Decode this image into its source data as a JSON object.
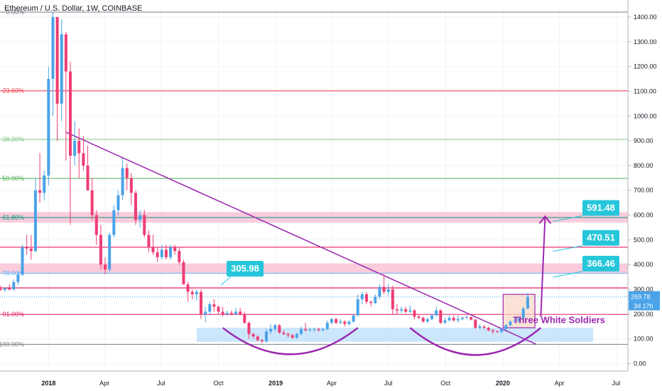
{
  "chart_data": {
    "type": "candlestick",
    "title": "Ethereum / U.S. Dollar, 1W, COINBASE",
    "price_axis": {
      "ticks": [
        1400,
        1300,
        1200,
        1100,
        1000,
        900,
        800,
        700,
        600,
        500,
        400,
        300,
        200,
        100,
        0
      ],
      "tick_labels": [
        "1400.00",
        "1300.00",
        "1200.00",
        "1100.00",
        "1000.00",
        "900.00",
        "800.00",
        "700.00",
        "600.00",
        "500.00",
        "400.00",
        "300.00",
        "200.00",
        "100.00",
        "0.00"
      ],
      "range": [
        -30,
        1440
      ]
    },
    "time_axis": {
      "labels": [
        "2018",
        "Apr",
        "Jul",
        "Oct",
        "2019",
        "Apr",
        "Jul",
        "Oct",
        "2020",
        "Apr",
        "Jul"
      ],
      "label_dates": [
        "2018-01-01",
        "2018-04-01",
        "2018-07-01",
        "2018-10-01",
        "2019-01-01",
        "2019-04-01",
        "2019-07-01",
        "2019-10-01",
        "2020-01-01",
        "2020-04-01",
        "2020-07-01"
      ],
      "bold_labels": [
        "2018",
        "2019",
        "2020"
      ],
      "range": [
        "2017-10-15",
        "2020-07-20"
      ]
    },
    "fib_levels": [
      {
        "label": "0.00%",
        "price": 1420,
        "color": "#787b86"
      },
      {
        "label": "23.60%",
        "price": 1102,
        "color": "#f23645"
      },
      {
        "label": "38.20%",
        "price": 906,
        "color": "#81c784"
      },
      {
        "label": "50.00%",
        "price": 748,
        "color": "#4caf50"
      },
      {
        "label": "61.80%",
        "price": 590,
        "color": "#089981"
      },
      {
        "label": "78.60%",
        "price": 365,
        "color": "#64b5f6"
      },
      {
        "label": "91.00%",
        "price": 199,
        "color": "#e91e63"
      },
      {
        "label": "100.00%",
        "price": 78,
        "color": "#787b86"
      }
    ],
    "horizontal_lines": [
      {
        "price": 470.51,
        "color": "#e91e63"
      },
      {
        "price": 305.98,
        "color": "#e91e63"
      }
    ],
    "zones": [
      {
        "from": 570,
        "to": 612,
        "color": "#f8bbd0"
      },
      {
        "from": 365,
        "to": 405,
        "color": "#f8bbd0"
      },
      {
        "from": 88,
        "to": 145,
        "color": "#bbdefb",
        "start": "2018-08-27",
        "end": "2020-05-25"
      }
    ],
    "trendline": {
      "from": [
        "2018-01-29",
        935
      ],
      "to": [
        "2020-02-24",
        78
      ],
      "color": "#9c27b0"
    },
    "price_labels": [
      {
        "text": "591.48",
        "price": 591.48,
        "anchor_date": "2020-03-10"
      },
      {
        "text": "470.51",
        "price": 470.51,
        "anchor_date": "2020-03-10"
      },
      {
        "text": "366.46",
        "price": 366.46,
        "anchor_date": "2020-03-10"
      },
      {
        "text": "305.98",
        "price": 305.98,
        "anchor_date": "2018-10-05"
      }
    ],
    "pattern_label": {
      "text": "Three White Soldiers",
      "color": "#9c27b0"
    },
    "pattern_box": {
      "start": "2020-01-06",
      "end": "2020-02-17",
      "low": 145,
      "high": 280
    },
    "arcs": [
      {
        "start": "2018-10-08",
        "end": "2019-05-13",
        "top": 145,
        "bottom": 38
      },
      {
        "start": "2019-08-05",
        "end": "2020-03-02",
        "top": 145,
        "bottom": 35
      }
    ],
    "target_arrow": {
      "from": [
        "2020-03-02",
        190
      ],
      "to": [
        "2020-03-09",
        595
      ]
    },
    "current_price": {
      "value": "269.78",
      "countdown": "3d 17h",
      "price": 269.78
    },
    "series": [
      {
        "date": "2017-10-09",
        "o": 300,
        "h": 310,
        "l": 290,
        "c": 302
      },
      {
        "date": "2017-10-16",
        "o": 302,
        "h": 315,
        "l": 293,
        "c": 298
      },
      {
        "date": "2017-10-23",
        "o": 298,
        "h": 310,
        "l": 290,
        "c": 305
      },
      {
        "date": "2017-10-30",
        "o": 305,
        "h": 320,
        "l": 295,
        "c": 300
      },
      {
        "date": "2017-11-06",
        "o": 300,
        "h": 340,
        "l": 295,
        "c": 330
      },
      {
        "date": "2017-11-13",
        "o": 330,
        "h": 370,
        "l": 318,
        "c": 360
      },
      {
        "date": "2017-11-20",
        "o": 360,
        "h": 480,
        "l": 355,
        "c": 470
      },
      {
        "date": "2017-11-27",
        "o": 470,
        "h": 520,
        "l": 440,
        "c": 465
      },
      {
        "date": "2017-12-04",
        "o": 465,
        "h": 520,
        "l": 420,
        "c": 455
      },
      {
        "date": "2017-12-11",
        "o": 455,
        "h": 750,
        "l": 450,
        "c": 700
      },
      {
        "date": "2017-12-18",
        "o": 700,
        "h": 850,
        "l": 650,
        "c": 690
      },
      {
        "date": "2017-12-25",
        "o": 690,
        "h": 780,
        "l": 660,
        "c": 760
      },
      {
        "date": "2018-01-01",
        "o": 760,
        "h": 1200,
        "l": 720,
        "c": 1150
      },
      {
        "date": "2018-01-08",
        "o": 1150,
        "h": 1420,
        "l": 1000,
        "c": 1400
      },
      {
        "date": "2018-01-15",
        "o": 1400,
        "h": 1400,
        "l": 900,
        "c": 1050
      },
      {
        "date": "2018-01-22",
        "o": 1050,
        "h": 1390,
        "l": 980,
        "c": 1330
      },
      {
        "date": "2018-01-29",
        "o": 1330,
        "h": 1340,
        "l": 820,
        "c": 1180
      },
      {
        "date": "2018-02-05",
        "o": 1180,
        "h": 1220,
        "l": 560,
        "c": 840
      },
      {
        "date": "2018-02-12",
        "o": 840,
        "h": 980,
        "l": 800,
        "c": 900
      },
      {
        "date": "2018-02-19",
        "o": 900,
        "h": 950,
        "l": 750,
        "c": 850
      },
      {
        "date": "2018-02-26",
        "o": 850,
        "h": 920,
        "l": 780,
        "c": 800
      },
      {
        "date": "2018-03-05",
        "o": 800,
        "h": 880,
        "l": 700,
        "c": 700
      },
      {
        "date": "2018-03-12",
        "o": 700,
        "h": 750,
        "l": 580,
        "c": 600
      },
      {
        "date": "2018-03-19",
        "o": 600,
        "h": 620,
        "l": 480,
        "c": 520
      },
      {
        "date": "2018-03-26",
        "o": 520,
        "h": 560,
        "l": 380,
        "c": 400
      },
      {
        "date": "2018-04-02",
        "o": 400,
        "h": 430,
        "l": 360,
        "c": 380
      },
      {
        "date": "2018-04-09",
        "o": 380,
        "h": 530,
        "l": 370,
        "c": 520
      },
      {
        "date": "2018-04-16",
        "o": 520,
        "h": 640,
        "l": 510,
        "c": 620
      },
      {
        "date": "2018-04-23",
        "o": 620,
        "h": 700,
        "l": 600,
        "c": 680
      },
      {
        "date": "2018-04-30",
        "o": 680,
        "h": 830,
        "l": 660,
        "c": 790
      },
      {
        "date": "2018-05-07",
        "o": 790,
        "h": 810,
        "l": 700,
        "c": 750
      },
      {
        "date": "2018-05-14",
        "o": 750,
        "h": 770,
        "l": 640,
        "c": 690
      },
      {
        "date": "2018-05-21",
        "o": 690,
        "h": 700,
        "l": 560,
        "c": 580
      },
      {
        "date": "2018-05-28",
        "o": 580,
        "h": 620,
        "l": 550,
        "c": 600
      },
      {
        "date": "2018-06-04",
        "o": 600,
        "h": 620,
        "l": 510,
        "c": 520
      },
      {
        "date": "2018-06-11",
        "o": 520,
        "h": 540,
        "l": 450,
        "c": 470
      },
      {
        "date": "2018-06-18",
        "o": 470,
        "h": 520,
        "l": 440,
        "c": 450
      },
      {
        "date": "2018-06-25",
        "o": 450,
        "h": 470,
        "l": 410,
        "c": 430
      },
      {
        "date": "2018-07-02",
        "o": 430,
        "h": 480,
        "l": 420,
        "c": 460
      },
      {
        "date": "2018-07-09",
        "o": 460,
        "h": 480,
        "l": 420,
        "c": 430
      },
      {
        "date": "2018-07-16",
        "o": 430,
        "h": 480,
        "l": 420,
        "c": 470
      },
      {
        "date": "2018-07-23",
        "o": 470,
        "h": 480,
        "l": 440,
        "c": 455
      },
      {
        "date": "2018-07-30",
        "o": 455,
        "h": 470,
        "l": 400,
        "c": 410
      },
      {
        "date": "2018-08-06",
        "o": 410,
        "h": 420,
        "l": 320,
        "c": 320
      },
      {
        "date": "2018-08-13",
        "o": 320,
        "h": 330,
        "l": 250,
        "c": 290
      },
      {
        "date": "2018-08-20",
        "o": 290,
        "h": 300,
        "l": 260,
        "c": 280
      },
      {
        "date": "2018-08-27",
        "o": 280,
        "h": 300,
        "l": 255,
        "c": 290
      },
      {
        "date": "2018-09-03",
        "o": 290,
        "h": 300,
        "l": 180,
        "c": 200
      },
      {
        "date": "2018-09-10",
        "o": 200,
        "h": 230,
        "l": 167,
        "c": 210
      },
      {
        "date": "2018-09-17",
        "o": 210,
        "h": 250,
        "l": 200,
        "c": 240
      },
      {
        "date": "2018-09-24",
        "o": 240,
        "h": 260,
        "l": 210,
        "c": 230
      },
      {
        "date": "2018-10-01",
        "o": 230,
        "h": 235,
        "l": 200,
        "c": 210
      },
      {
        "date": "2018-10-08",
        "o": 210,
        "h": 230,
        "l": 190,
        "c": 200
      },
      {
        "date": "2018-10-15",
        "o": 200,
        "h": 215,
        "l": 195,
        "c": 205
      },
      {
        "date": "2018-10-22",
        "o": 205,
        "h": 215,
        "l": 195,
        "c": 200
      },
      {
        "date": "2018-10-29",
        "o": 200,
        "h": 225,
        "l": 195,
        "c": 210
      },
      {
        "date": "2018-11-05",
        "o": 210,
        "h": 225,
        "l": 195,
        "c": 200
      },
      {
        "date": "2018-11-12",
        "o": 200,
        "h": 210,
        "l": 160,
        "c": 165
      },
      {
        "date": "2018-11-19",
        "o": 165,
        "h": 170,
        "l": 100,
        "c": 120
      },
      {
        "date": "2018-11-26",
        "o": 120,
        "h": 125,
        "l": 100,
        "c": 110
      },
      {
        "date": "2018-12-03",
        "o": 110,
        "h": 115,
        "l": 90,
        "c": 95
      },
      {
        "date": "2018-12-10",
        "o": 95,
        "h": 100,
        "l": 83,
        "c": 90
      },
      {
        "date": "2018-12-17",
        "o": 90,
        "h": 140,
        "l": 85,
        "c": 130
      },
      {
        "date": "2018-12-24",
        "o": 130,
        "h": 160,
        "l": 120,
        "c": 140
      },
      {
        "date": "2018-12-31",
        "o": 140,
        "h": 160,
        "l": 130,
        "c": 155
      },
      {
        "date": "2019-01-07",
        "o": 155,
        "h": 160,
        "l": 120,
        "c": 125
      },
      {
        "date": "2019-01-14",
        "o": 125,
        "h": 135,
        "l": 115,
        "c": 120
      },
      {
        "date": "2019-01-21",
        "o": 120,
        "h": 125,
        "l": 105,
        "c": 115
      },
      {
        "date": "2019-01-28",
        "o": 115,
        "h": 120,
        "l": 100,
        "c": 105
      },
      {
        "date": "2019-02-04",
        "o": 105,
        "h": 125,
        "l": 100,
        "c": 120
      },
      {
        "date": "2019-02-11",
        "o": 120,
        "h": 150,
        "l": 115,
        "c": 140
      },
      {
        "date": "2019-02-18",
        "o": 140,
        "h": 165,
        "l": 130,
        "c": 135
      },
      {
        "date": "2019-02-25",
        "o": 135,
        "h": 145,
        "l": 130,
        "c": 138
      },
      {
        "date": "2019-03-04",
        "o": 138,
        "h": 145,
        "l": 130,
        "c": 140
      },
      {
        "date": "2019-03-11",
        "o": 140,
        "h": 145,
        "l": 130,
        "c": 135
      },
      {
        "date": "2019-03-18",
        "o": 135,
        "h": 145,
        "l": 130,
        "c": 140
      },
      {
        "date": "2019-03-25",
        "o": 140,
        "h": 175,
        "l": 135,
        "c": 165
      },
      {
        "date": "2019-04-01",
        "o": 165,
        "h": 185,
        "l": 160,
        "c": 180
      },
      {
        "date": "2019-04-08",
        "o": 180,
        "h": 185,
        "l": 160,
        "c": 165
      },
      {
        "date": "2019-04-15",
        "o": 165,
        "h": 180,
        "l": 160,
        "c": 170
      },
      {
        "date": "2019-04-22",
        "o": 170,
        "h": 175,
        "l": 150,
        "c": 160
      },
      {
        "date": "2019-04-29",
        "o": 160,
        "h": 175,
        "l": 155,
        "c": 170
      },
      {
        "date": "2019-05-06",
        "o": 170,
        "h": 200,
        "l": 165,
        "c": 195
      },
      {
        "date": "2019-05-13",
        "o": 195,
        "h": 280,
        "l": 190,
        "c": 260
      },
      {
        "date": "2019-05-20",
        "o": 260,
        "h": 290,
        "l": 240,
        "c": 280
      },
      {
        "date": "2019-05-27",
        "o": 280,
        "h": 290,
        "l": 240,
        "c": 250
      },
      {
        "date": "2019-06-03",
        "o": 250,
        "h": 255,
        "l": 230,
        "c": 245
      },
      {
        "date": "2019-06-10",
        "o": 245,
        "h": 280,
        "l": 240,
        "c": 270
      },
      {
        "date": "2019-06-17",
        "o": 270,
        "h": 320,
        "l": 260,
        "c": 310
      },
      {
        "date": "2019-06-24",
        "o": 310,
        "h": 362,
        "l": 280,
        "c": 290
      },
      {
        "date": "2019-07-01",
        "o": 290,
        "h": 320,
        "l": 275,
        "c": 300
      },
      {
        "date": "2019-07-08",
        "o": 300,
        "h": 315,
        "l": 200,
        "c": 220
      },
      {
        "date": "2019-07-15",
        "o": 220,
        "h": 240,
        "l": 200,
        "c": 215
      },
      {
        "date": "2019-07-22",
        "o": 215,
        "h": 230,
        "l": 205,
        "c": 220
      },
      {
        "date": "2019-07-29",
        "o": 220,
        "h": 230,
        "l": 205,
        "c": 210
      },
      {
        "date": "2019-08-05",
        "o": 210,
        "h": 235,
        "l": 205,
        "c": 215
      },
      {
        "date": "2019-08-12",
        "o": 215,
        "h": 220,
        "l": 180,
        "c": 190
      },
      {
        "date": "2019-08-19",
        "o": 190,
        "h": 200,
        "l": 180,
        "c": 185
      },
      {
        "date": "2019-08-26",
        "o": 185,
        "h": 190,
        "l": 165,
        "c": 170
      },
      {
        "date": "2019-09-02",
        "o": 170,
        "h": 185,
        "l": 165,
        "c": 180
      },
      {
        "date": "2019-09-09",
        "o": 180,
        "h": 200,
        "l": 175,
        "c": 195
      },
      {
        "date": "2019-09-16",
        "o": 195,
        "h": 230,
        "l": 190,
        "c": 215
      },
      {
        "date": "2019-09-23",
        "o": 215,
        "h": 220,
        "l": 160,
        "c": 165
      },
      {
        "date": "2019-09-30",
        "o": 165,
        "h": 185,
        "l": 160,
        "c": 175
      },
      {
        "date": "2019-10-07",
        "o": 175,
        "h": 195,
        "l": 170,
        "c": 185
      },
      {
        "date": "2019-10-14",
        "o": 185,
        "h": 195,
        "l": 170,
        "c": 175
      },
      {
        "date": "2019-10-21",
        "o": 175,
        "h": 195,
        "l": 165,
        "c": 180
      },
      {
        "date": "2019-10-28",
        "o": 180,
        "h": 190,
        "l": 175,
        "c": 185
      },
      {
        "date": "2019-11-04",
        "o": 185,
        "h": 195,
        "l": 180,
        "c": 188
      },
      {
        "date": "2019-11-11",
        "o": 188,
        "h": 190,
        "l": 175,
        "c": 178
      },
      {
        "date": "2019-11-18",
        "o": 178,
        "h": 180,
        "l": 140,
        "c": 145
      },
      {
        "date": "2019-11-25",
        "o": 145,
        "h": 160,
        "l": 140,
        "c": 150
      },
      {
        "date": "2019-12-02",
        "o": 150,
        "h": 155,
        "l": 140,
        "c": 145
      },
      {
        "date": "2019-12-09",
        "o": 145,
        "h": 150,
        "l": 130,
        "c": 135
      },
      {
        "date": "2019-12-16",
        "o": 135,
        "h": 140,
        "l": 120,
        "c": 130
      },
      {
        "date": "2019-12-23",
        "o": 130,
        "h": 135,
        "l": 125,
        "c": 128
      },
      {
        "date": "2019-12-30",
        "o": 128,
        "h": 145,
        "l": 125,
        "c": 140
      },
      {
        "date": "2020-01-06",
        "o": 140,
        "h": 160,
        "l": 135,
        "c": 155
      },
      {
        "date": "2020-01-13",
        "o": 155,
        "h": 175,
        "l": 150,
        "c": 170
      },
      {
        "date": "2020-01-20",
        "o": 170,
        "h": 185,
        "l": 165,
        "c": 172
      },
      {
        "date": "2020-01-27",
        "o": 172,
        "h": 190,
        "l": 165,
        "c": 183
      },
      {
        "date": "2020-02-03",
        "o": 183,
        "h": 230,
        "l": 180,
        "c": 223
      },
      {
        "date": "2020-02-10",
        "o": 223,
        "h": 285,
        "l": 220,
        "c": 270
      }
    ],
    "colors": {
      "up": "#4aa3e8",
      "down": "#ef3d74",
      "grid": "#f0f3fa"
    }
  }
}
